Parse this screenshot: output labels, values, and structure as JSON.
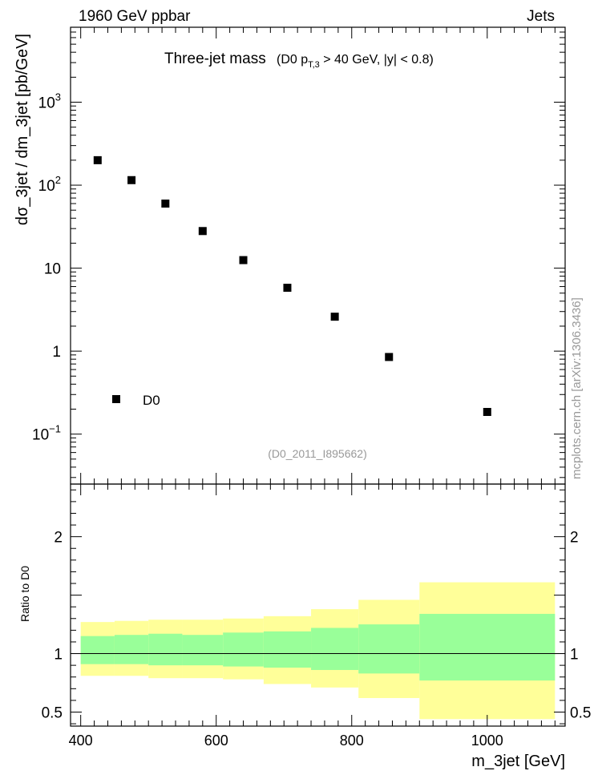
{
  "header": {
    "left": "1960 GeV ppbar",
    "right": "Jets"
  },
  "side_label": "mcplots.cern.ch [arXiv:1306.3436]",
  "chart_data": [
    {
      "type": "scatter",
      "title": "Three-jet mass",
      "subtitle": "(D0 p_T,3 > 40 GeV, |y| < 0.8)",
      "subtitle_parts": {
        "open": "(D0 p",
        "sub": "T,3",
        "rest": " > 40 GeV, |y| < 0.8)"
      },
      "ylabel": "dσ_3jet / dm_3jet [pb/GeV]",
      "yscale": "log",
      "ylim": [
        0.025,
        8000
      ],
      "xlim": [
        385,
        1115
      ],
      "yticks": [
        {
          "value": 0.1,
          "base": "10",
          "exp": "−1"
        },
        {
          "value": 1,
          "base": "1",
          "exp": ""
        },
        {
          "value": 10,
          "base": "10",
          "exp": ""
        },
        {
          "value": 100,
          "base": "10",
          "exp": "2"
        },
        {
          "value": 1000,
          "base": "10",
          "exp": "3"
        }
      ],
      "legend": {
        "entries": [
          "D0"
        ],
        "position": "lower-left"
      },
      "watermark": "(D0_2011_I895662)",
      "series": [
        {
          "name": "D0",
          "marker": "square",
          "x": [
            425,
            475,
            525,
            580,
            640,
            705,
            775,
            855,
            1000
          ],
          "y": [
            200,
            115,
            60,
            28,
            12.5,
            5.8,
            2.6,
            0.85,
            0.185
          ]
        }
      ]
    },
    {
      "type": "area",
      "ylabel": "Ratio to D0",
      "xlabel": "m_3jet [GeV]",
      "ylim": [
        0.38,
        2.45
      ],
      "xlim": [
        385,
        1115
      ],
      "yticks": [
        0.5,
        1,
        2
      ],
      "ytick_labels": [
        "0.5",
        "1",
        "2"
      ],
      "xticks": [
        400,
        600,
        800,
        1000
      ],
      "xtick_labels": [
        "400",
        "600",
        "800",
        "1000"
      ],
      "reference_line": 1,
      "bands": {
        "edges": [
          400,
          450,
          500,
          550,
          610,
          670,
          740,
          810,
          900,
          1100
        ],
        "inner_low": [
          0.91,
          0.91,
          0.9,
          0.9,
          0.89,
          0.88,
          0.86,
          0.83,
          0.77
        ],
        "inner_high": [
          1.15,
          1.16,
          1.17,
          1.16,
          1.18,
          1.19,
          1.22,
          1.25,
          1.34
        ],
        "outer_low": [
          0.81,
          0.81,
          0.79,
          0.79,
          0.78,
          0.74,
          0.71,
          0.62,
          0.44
        ],
        "outer_high": [
          1.27,
          1.28,
          1.29,
          1.29,
          1.3,
          1.32,
          1.38,
          1.46,
          1.61
        ],
        "inner_color": "#99ff99",
        "outer_color": "#ffff99"
      }
    }
  ]
}
